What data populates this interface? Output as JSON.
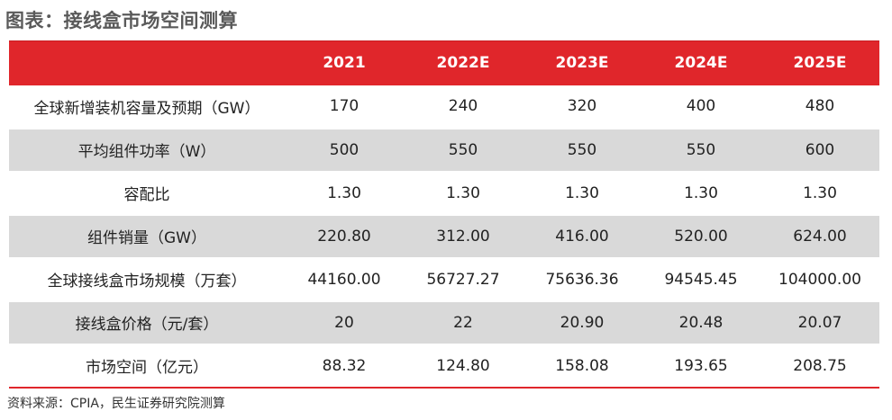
{
  "title": "图表：接线盒市场空间测算",
  "table": {
    "header": [
      "",
      "2021",
      "2022E",
      "2023E",
      "2024E",
      "2025E"
    ],
    "rows": [
      {
        "label": "全球新增装机容量及预期（GW）",
        "values": [
          "170",
          "240",
          "320",
          "400",
          "480"
        ]
      },
      {
        "label": "平均组件功率（W）",
        "values": [
          "500",
          "550",
          "550",
          "550",
          "600"
        ]
      },
      {
        "label": "容配比",
        "values": [
          "1.30",
          "1.30",
          "1.30",
          "1.30",
          "1.30"
        ]
      },
      {
        "label": "组件销量（GW）",
        "values": [
          "220.80",
          "312.00",
          "416.00",
          "520.00",
          "624.00"
        ]
      },
      {
        "label": "全球接线盒市场规模（万套）",
        "values": [
          "44160.00",
          "56727.27",
          "75636.36",
          "94545.45",
          "104000.00"
        ]
      },
      {
        "label": "接线盒价格（元/套）",
        "values": [
          "20",
          "22",
          "20.90",
          "20.48",
          "20.07"
        ]
      },
      {
        "label": "市场空间（亿元）",
        "values": [
          "88.32",
          "124.80",
          "158.08",
          "193.65",
          "208.75"
        ]
      }
    ]
  },
  "source": "资料来源：CPIA，民生证券研究院测算",
  "colors": {
    "header_bg": "#e0262b",
    "stripe_bg": "#d9d9d9",
    "title_text": "#5a5a5a"
  }
}
